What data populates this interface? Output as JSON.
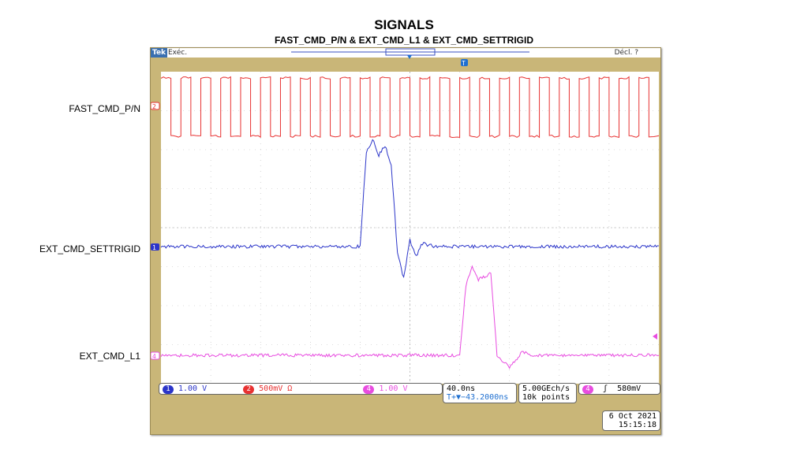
{
  "chart_data": {
    "type": "line",
    "title": "SIGNALS",
    "subtitle": "FAST_CMD_P/N & EXT_CMD_L1 & EXT_CMD_SETTRIGID",
    "series": [
      {
        "name": "FAST_CMD_P/N",
        "channel": "2",
        "color": "#e83232",
        "description": "square wave ~ 2 levels",
        "x_pattern_ns": [
          0,
          8,
          16,
          24,
          32,
          40,
          48,
          56,
          64,
          72,
          80,
          88,
          96,
          104,
          112,
          120,
          128,
          136,
          144,
          152,
          160,
          168,
          176,
          184,
          192,
          200,
          208,
          216,
          224,
          232,
          240,
          248,
          256,
          264,
          272,
          280,
          288,
          296,
          304,
          312,
          320,
          328,
          336,
          344,
          352,
          360,
          368,
          376,
          384,
          392
        ],
        "values": [
          1,
          0,
          1,
          0,
          1,
          0,
          1,
          0,
          1,
          0,
          1,
          0,
          1,
          0,
          1,
          0,
          1,
          0,
          1,
          0,
          1,
          0,
          1,
          0,
          1,
          0,
          1,
          0,
          1,
          0,
          1,
          0,
          1,
          0,
          1,
          0,
          1,
          0,
          1,
          0,
          1,
          0,
          1,
          0,
          1,
          0,
          1,
          0,
          1,
          0
        ]
      },
      {
        "name": "EXT_CMD_SETTRIGID",
        "channel": "1",
        "color": "#2b35c9",
        "x": [
          -200,
          -100,
          -40,
          -35,
          -30,
          -25,
          -20,
          -15,
          -10,
          -5,
          0,
          5,
          10,
          20,
          40,
          200
        ],
        "values": [
          0,
          0,
          0,
          3.0,
          3.4,
          2.9,
          3.2,
          2.6,
          -0.2,
          -1.0,
          0.2,
          -0.3,
          0.1,
          0,
          0,
          0
        ]
      },
      {
        "name": "EXT_CMD_L1",
        "channel": "4",
        "color": "#e84ce0",
        "x": [
          -200,
          0,
          40,
          45,
          50,
          55,
          60,
          65,
          70,
          80,
          90,
          100,
          120,
          200
        ],
        "values": [
          0,
          0,
          0,
          2.2,
          2.8,
          2.4,
          2.5,
          2.6,
          0,
          -0.4,
          0.1,
          0,
          0,
          0
        ]
      }
    ],
    "grid": true
  },
  "scope": {
    "brand": "Tek",
    "status": "Exéc.",
    "trigger_state": "Décl. ?",
    "ch1_scale": "1.00 V",
    "ch2_scale": "500mV Ω",
    "ch4_scale": "1.00 V",
    "timebase": "40.0ns",
    "delay": "T+▼−43.2000ns",
    "sample_rate": "5.00GEch/s",
    "record_length": "10k points",
    "trig_channel": "4",
    "trig_slope": "ʃ",
    "trig_level": "580mV",
    "date": "6 Oct  2021",
    "time": "15:15:18",
    "ch1_label": "1",
    "ch2_label": "2",
    "ch4_label": "4"
  },
  "labels": {
    "fast": "FAST_CMD_P/N",
    "settrig": "EXT_CMD_SETTRIGID",
    "l1": "EXT_CMD_L1"
  }
}
